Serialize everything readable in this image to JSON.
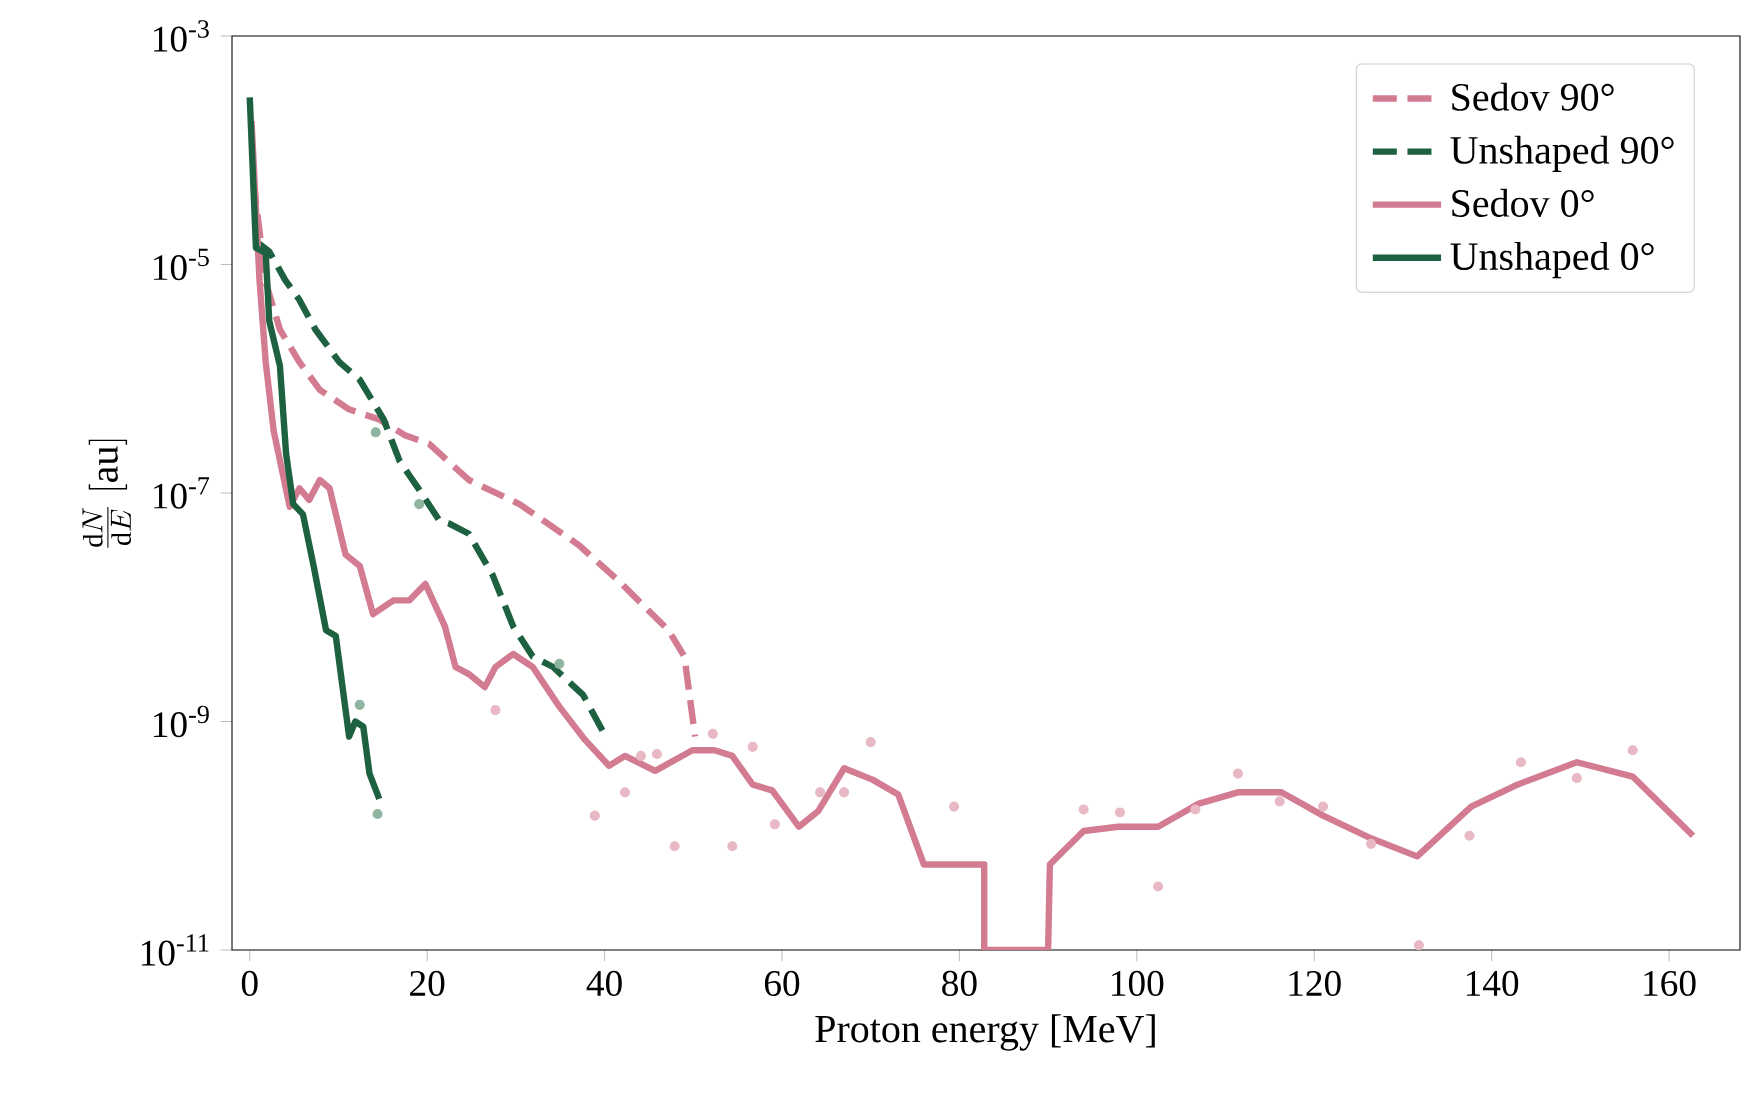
{
  "chart_data": {
    "type": "line",
    "xlabel": "Proton energy [MeV]",
    "ylabel": "\\frac{\\mathrm{d}N}{\\mathrm{d}E}\\ [\\mathrm{au}]",
    "log": "y",
    "xlim": [
      -2,
      168
    ],
    "ylim": [
      1e-11,
      0.001
    ],
    "xticks": [
      0,
      20,
      40,
      60,
      80,
      100,
      120,
      140,
      160
    ],
    "yticks": [
      {
        "value": 0.001,
        "label": "10$^{-3}$"
      },
      {
        "value": 1e-05,
        "label": "10$^{-5}$"
      },
      {
        "value": 1e-07,
        "label": "10$^{-7}$"
      },
      {
        "value": 1e-09,
        "label": "10$^{-9}$"
      },
      {
        "value": 1e-11,
        "label": "10$^{-11}$"
      }
    ],
    "grid": false,
    "legend": "top right",
    "marker": "none",
    "series": [
      {
        "type": "scatter",
        "marker": "circle",
        "color": "#e8b9c5",
        "x": [
          94,
          98.1,
          102.4,
          106.6,
          111.4,
          116.1,
          121,
          126.4,
          131.8,
          137.5,
          143.3,
          149.6,
          155.9,
          52.2,
          56.7,
          70,
          79.4,
          64.3,
          67,
          59.2,
          54.4,
          47.9,
          42.3,
          38.9,
          44.1,
          45.9,
          27.7
        ],
        "values": [
          1.7e-10,
          1.6e-10,
          3.6e-11,
          1.7e-10,
          3.5e-10,
          2e-10,
          1.8e-10,
          8.5e-11,
          1.1e-11,
          1e-10,
          4.4e-10,
          3.2e-10,
          5.6e-10,
          7.8e-10,
          6e-10,
          6.6e-10,
          1.8e-10,
          2.4e-10,
          2.4e-10,
          1.26e-10,
          8.1e-11,
          8.1e-11,
          2.4e-10,
          1.5e-10,
          5e-10,
          5.2e-10,
          1.26e-09
        ]
      },
      {
        "type": "scatter",
        "marker": "circle",
        "color": "#8fb5a0",
        "x": [
          12.4,
          14.4,
          34.9,
          19.1,
          14.2
        ],
        "values": [
          1.4e-09,
          1.55e-10,
          3.2e-09,
          8e-08,
          3.4e-07
        ]
      },
      {
        "name": "Sedov 90°",
        "line_style": "dashed",
        "color": "#d27b91",
        "x": [
          0.4,
          1.8,
          3.4,
          5.6,
          7.9,
          11.2,
          14.6,
          17.5,
          20.2,
          24.7,
          30.4,
          37.1,
          41.6,
          47.2,
          49,
          50.2
        ],
        "values": [
          5.5e-05,
          7e-06,
          2.7e-06,
          1.4e-06,
          8e-07,
          5.4e-07,
          4.4e-07,
          3.2e-07,
          2.7e-07,
          1.3e-07,
          8e-08,
          3.5e-08,
          1.7e-08,
          6.3e-09,
          3.7e-09,
          7.4e-10
        ]
      },
      {
        "name": "Unshaped 90°",
        "line_style": "dashed",
        "color": "#1d6140",
        "x": [
          0.7,
          2.2,
          4,
          5.6,
          7.4,
          10.1,
          12.4,
          15.1,
          16.9,
          19.1,
          21.4,
          22.5,
          24.7,
          27.4,
          29.7,
          31.9,
          34.2,
          37.6,
          40
        ],
        "values": [
          1.6e-05,
          1.3e-05,
          7.3e-06,
          4.9e-06,
          2.7e-06,
          1.4e-06,
          9.8e-07,
          4.4e-07,
          1.9e-07,
          1.07e-07,
          5.7e-08,
          5.4e-08,
          4.4e-08,
          1.9e-08,
          6.8e-09,
          3.7e-09,
          3e-09,
          1.7e-09,
          7.7e-10
        ]
      },
      {
        "name": "Sedov 0°",
        "line_style": "solid",
        "color": "#d27b91",
        "x": [
          0.2,
          1.1,
          1.8,
          2.7,
          4.5,
          5.6,
          6.7,
          7.9,
          9,
          10.8,
          12.4,
          13.9,
          16.2,
          18,
          19.8,
          22,
          23.2,
          24.7,
          26.5,
          27.7,
          29.7,
          31.9,
          34.9,
          37.8,
          40.5,
          42.3,
          45.7,
          49.9,
          52.4,
          54.4,
          56.7,
          58.9,
          61.9,
          64.1,
          67,
          70.2,
          73.1,
          76,
          82.8,
          82.8,
          90,
          90.2,
          94,
          97.9,
          102.4,
          106.9,
          111.4,
          116.3,
          121,
          126.4,
          131.6,
          137.7,
          142.9,
          149.6,
          155.9,
          162.7
        ],
        "values": [
          0.00018,
          7.3e-06,
          1.4e-06,
          3.5e-07,
          7.6e-08,
          1.1e-07,
          8.7e-08,
          1.3e-07,
          1.1e-07,
          2.9e-08,
          2.3e-08,
          8.7e-09,
          1.15e-08,
          1.15e-08,
          1.6e-08,
          6.8e-09,
          3e-09,
          2.6e-09,
          2e-09,
          3e-09,
          3.9e-09,
          3e-09,
          1.35e-09,
          6.9e-10,
          4.1e-10,
          5e-10,
          3.7e-10,
          5.6e-10,
          5.6e-10,
          5e-10,
          2.8e-10,
          2.5e-10,
          1.2e-10,
          1.65e-10,
          3.9e-10,
          3.1e-10,
          2.3e-10,
          5.6e-11,
          5.6e-11,
          1e-11,
          1e-11,
          5.6e-11,
          1.1e-10,
          1.2e-10,
          1.2e-10,
          1.9e-10,
          2.4e-10,
          2.4e-10,
          1.5e-10,
          9.5e-11,
          6.6e-11,
          1.8e-10,
          2.8e-10,
          4.4e-10,
          3.3e-10,
          1e-10
        ]
      },
      {
        "name": "Unshaped 0°",
        "line_style": "solid",
        "color": "#1d6140",
        "x": [
          0,
          0.7,
          1.8,
          2.2,
          3.4,
          4.1,
          4.9,
          6,
          7.2,
          8.6,
          9.7,
          11.2,
          11.9,
          12.8,
          13.5,
          14.6
        ],
        "values": [
          0.00029,
          1.4e-05,
          1.26e-05,
          3.2e-06,
          1.3e-06,
          2.2e-07,
          8e-08,
          6.5e-08,
          2.3e-08,
          6.3e-09,
          5.6e-09,
          7.4e-10,
          1e-09,
          9e-10,
          3.5e-10,
          2.1e-10
        ]
      }
    ]
  }
}
